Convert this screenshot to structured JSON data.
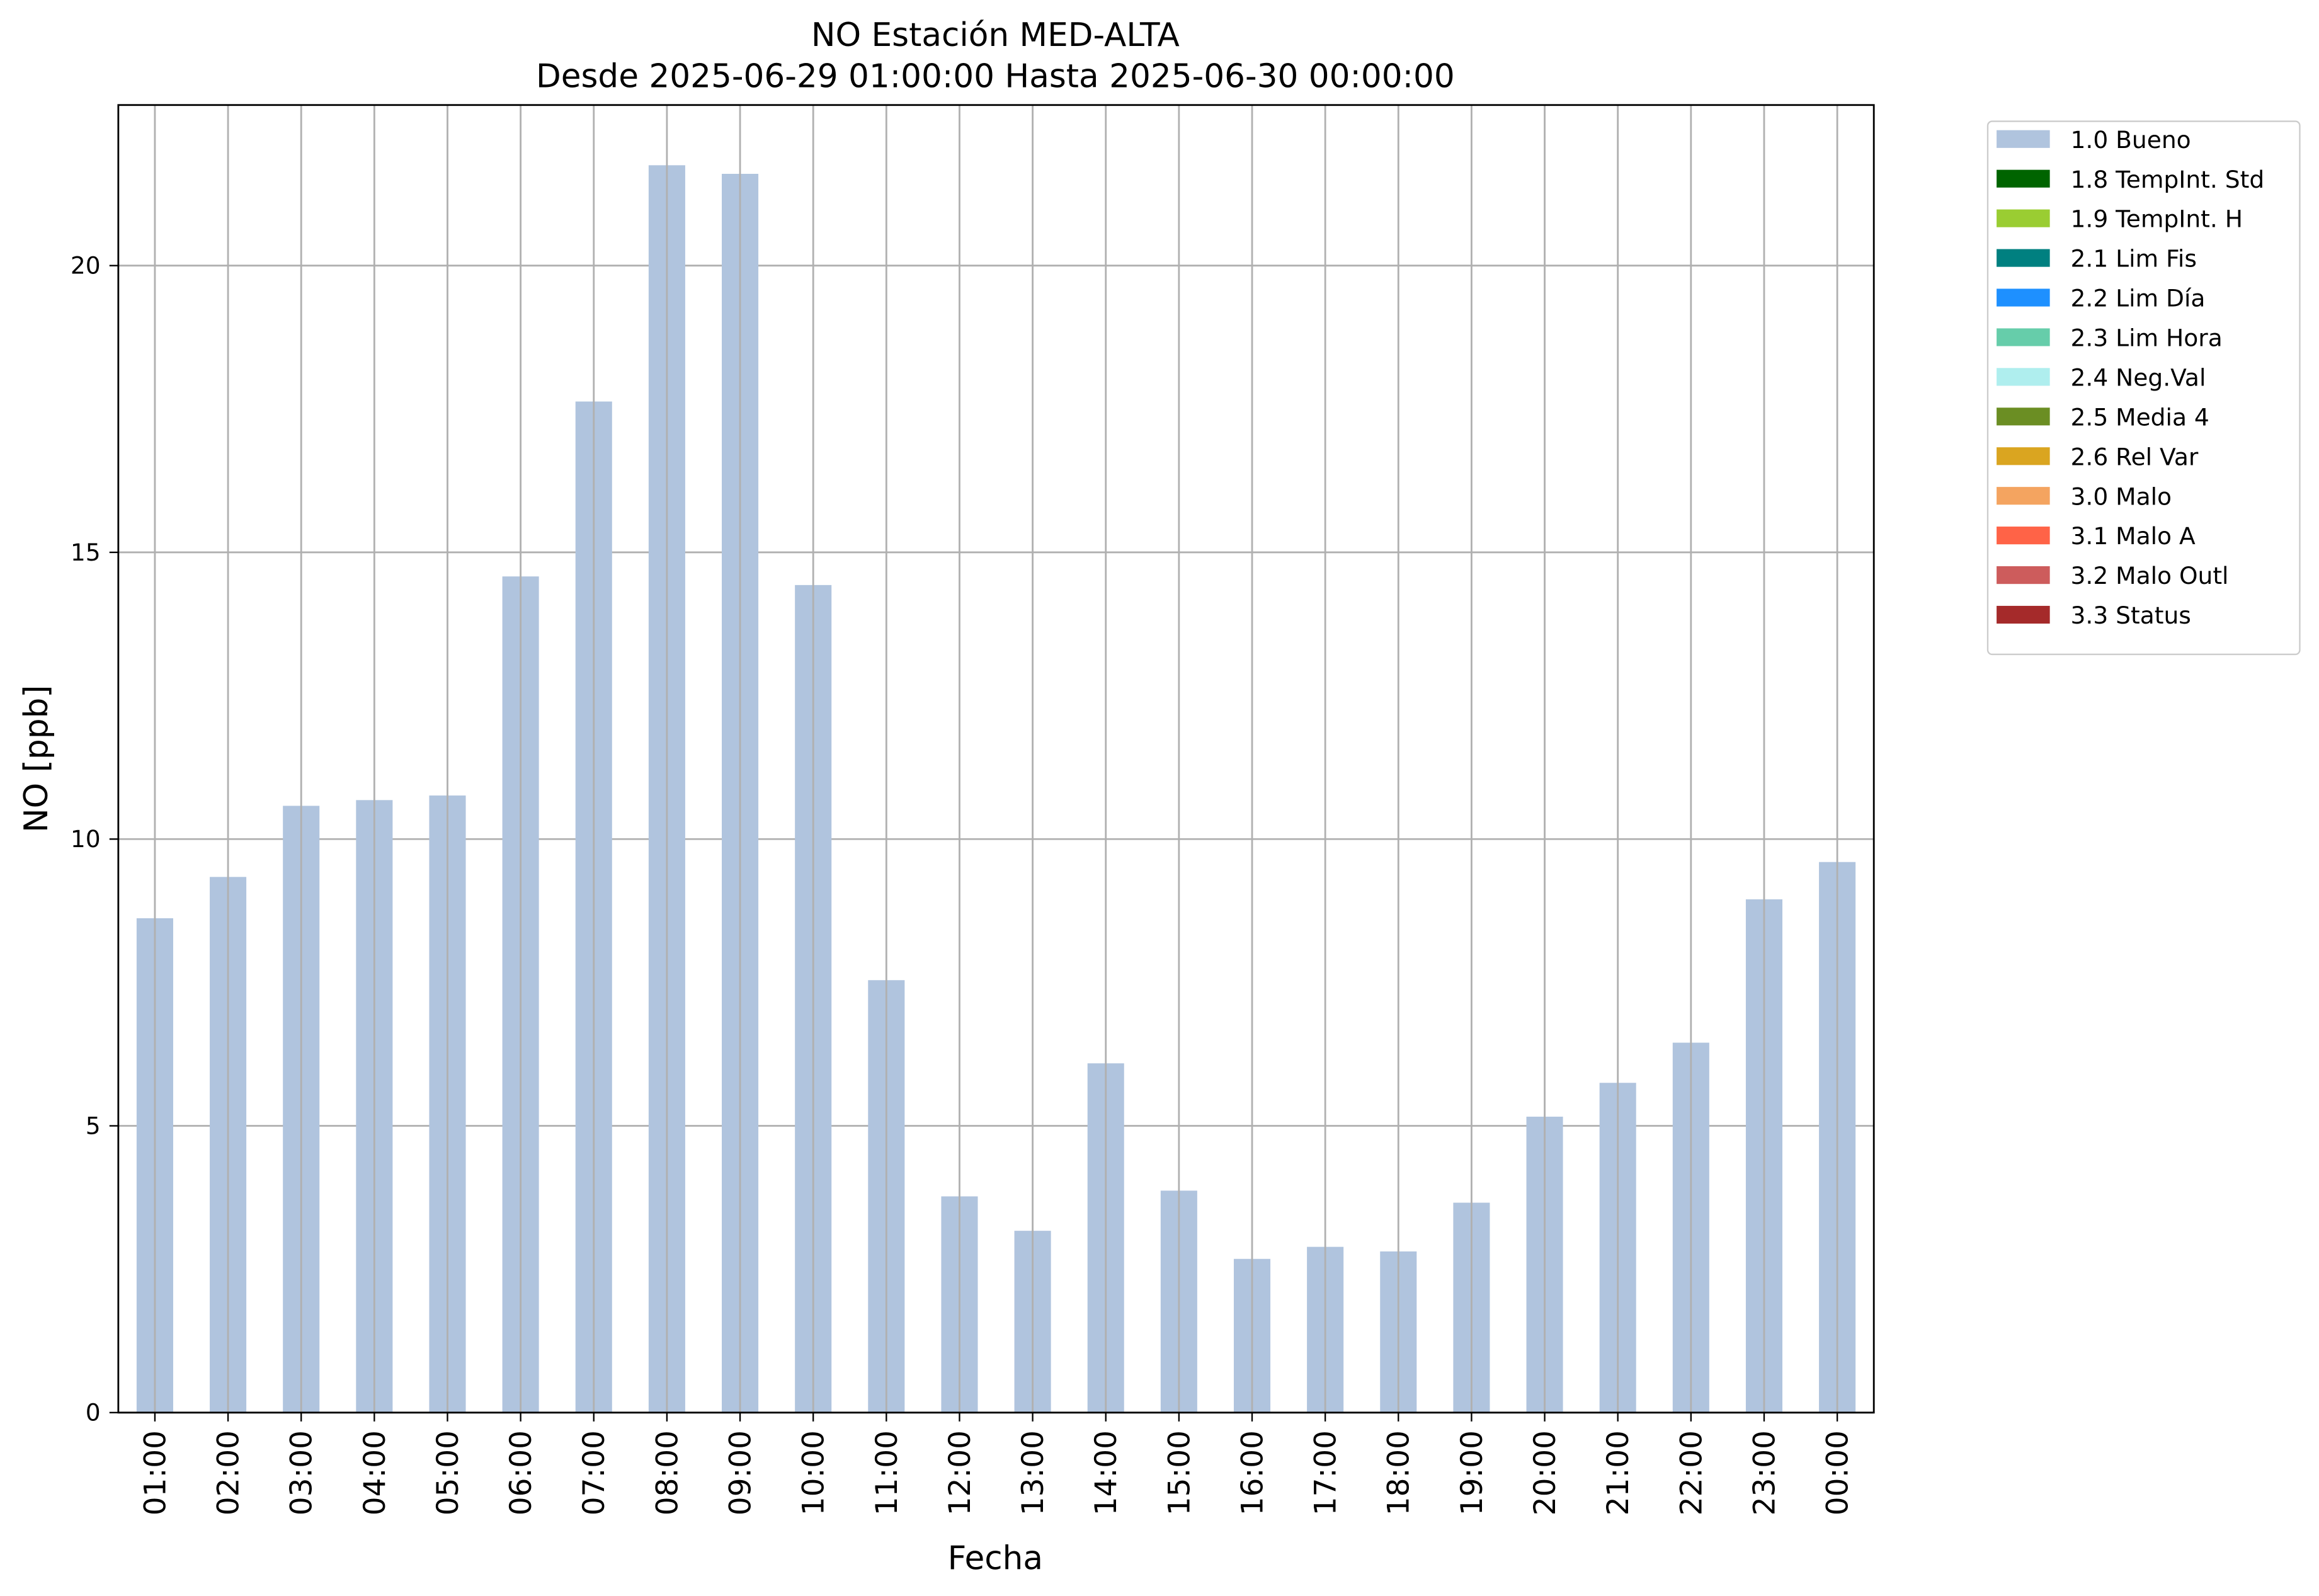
{
  "chart_data": {
    "type": "bar",
    "title": "NO Estación MED-ALTA",
    "subtitle": "Desde 2025-06-29 01:00:00 Hasta 2025-06-30 00:00:00",
    "x_label": "Fecha",
    "y_label": "NO [ppb]",
    "categories": [
      "01:00",
      "02:00",
      "03:00",
      "04:00",
      "05:00",
      "06:00",
      "07:00",
      "08:00",
      "09:00",
      "10:00",
      "11:00",
      "12:00",
      "13:00",
      "14:00",
      "15:00",
      "16:00",
      "17:00",
      "18:00",
      "19:00",
      "20:00",
      "21:00",
      "22:00",
      "23:00",
      "00:00"
    ],
    "series": [
      {
        "name": "1.0 Bueno",
        "color": "#b0c4de",
        "values": [
          8.62,
          9.34,
          10.58,
          10.68,
          10.76,
          14.58,
          17.63,
          21.75,
          21.6,
          14.43,
          7.54,
          3.77,
          3.17,
          6.09,
          3.87,
          2.68,
          2.89,
          2.81,
          3.66,
          5.16,
          5.75,
          6.45,
          8.95,
          9.6
        ]
      },
      {
        "name": "1.8 TempInt. Std",
        "color": "#006400",
        "values": [
          null,
          null,
          null,
          null,
          null,
          null,
          null,
          null,
          null,
          null,
          null,
          null,
          null,
          null,
          null,
          null,
          null,
          null,
          null,
          null,
          null,
          null,
          null,
          null
        ]
      },
      {
        "name": "1.9 TempInt. H",
        "color": "#9acd32",
        "values": [
          null,
          null,
          null,
          null,
          null,
          null,
          null,
          null,
          null,
          null,
          null,
          null,
          null,
          null,
          null,
          null,
          null,
          null,
          null,
          null,
          null,
          null,
          null,
          null
        ]
      },
      {
        "name": "2.1 Lim Fis",
        "color": "#008080",
        "values": [
          null,
          null,
          null,
          null,
          null,
          null,
          null,
          null,
          null,
          null,
          null,
          null,
          null,
          null,
          null,
          null,
          null,
          null,
          null,
          null,
          null,
          null,
          null,
          null
        ]
      },
      {
        "name": "2.2 Lim Día",
        "color": "#1e90ff",
        "values": [
          null,
          null,
          null,
          null,
          null,
          null,
          null,
          null,
          null,
          null,
          null,
          null,
          null,
          null,
          null,
          null,
          null,
          null,
          null,
          null,
          null,
          null,
          null,
          null
        ]
      },
      {
        "name": "2.3 Lim Hora",
        "color": "#66cdaa",
        "values": [
          null,
          null,
          null,
          null,
          null,
          null,
          null,
          null,
          null,
          null,
          null,
          null,
          null,
          null,
          null,
          null,
          null,
          null,
          null,
          null,
          null,
          null,
          null,
          null
        ]
      },
      {
        "name": "2.4 Neg.Val",
        "color": "#afeeee",
        "values": [
          null,
          null,
          null,
          null,
          null,
          null,
          null,
          null,
          null,
          null,
          null,
          null,
          null,
          null,
          null,
          null,
          null,
          null,
          null,
          null,
          null,
          null,
          null,
          null
        ]
      },
      {
        "name": "2.5 Media 4",
        "color": "#6b8e23",
        "values": [
          null,
          null,
          null,
          null,
          null,
          null,
          null,
          null,
          null,
          null,
          null,
          null,
          null,
          null,
          null,
          null,
          null,
          null,
          null,
          null,
          null,
          null,
          null,
          null
        ]
      },
      {
        "name": "2.6 Rel Var",
        "color": "#daa520",
        "values": [
          null,
          null,
          null,
          null,
          null,
          null,
          null,
          null,
          null,
          null,
          null,
          null,
          null,
          null,
          null,
          null,
          null,
          null,
          null,
          null,
          null,
          null,
          null,
          null
        ]
      },
      {
        "name": "3.0 Malo",
        "color": "#f4a460",
        "values": [
          null,
          null,
          null,
          null,
          null,
          null,
          null,
          null,
          null,
          null,
          null,
          null,
          null,
          null,
          null,
          null,
          null,
          null,
          null,
          null,
          null,
          null,
          null,
          null
        ]
      },
      {
        "name": "3.1 Malo A",
        "color": "#ff6347",
        "values": [
          null,
          null,
          null,
          null,
          null,
          null,
          null,
          null,
          null,
          null,
          null,
          null,
          null,
          null,
          null,
          null,
          null,
          null,
          null,
          null,
          null,
          null,
          null,
          null
        ]
      },
      {
        "name": "3.2 Malo Outl",
        "color": "#cd5c5c",
        "values": [
          null,
          null,
          null,
          null,
          null,
          null,
          null,
          null,
          null,
          null,
          null,
          null,
          null,
          null,
          null,
          null,
          null,
          null,
          null,
          null,
          null,
          null,
          null,
          null
        ]
      },
      {
        "name": "3.3 Status",
        "color": "#a52a2a",
        "values": [
          null,
          null,
          null,
          null,
          null,
          null,
          null,
          null,
          null,
          null,
          null,
          null,
          null,
          null,
          null,
          null,
          null,
          null,
          null,
          null,
          null,
          null,
          null,
          null
        ]
      }
    ],
    "ylim": [
      0,
      22.8
    ],
    "yticks": [
      0,
      5,
      10,
      15,
      20
    ],
    "grid": true,
    "legend": "outside-upper-right"
  }
}
